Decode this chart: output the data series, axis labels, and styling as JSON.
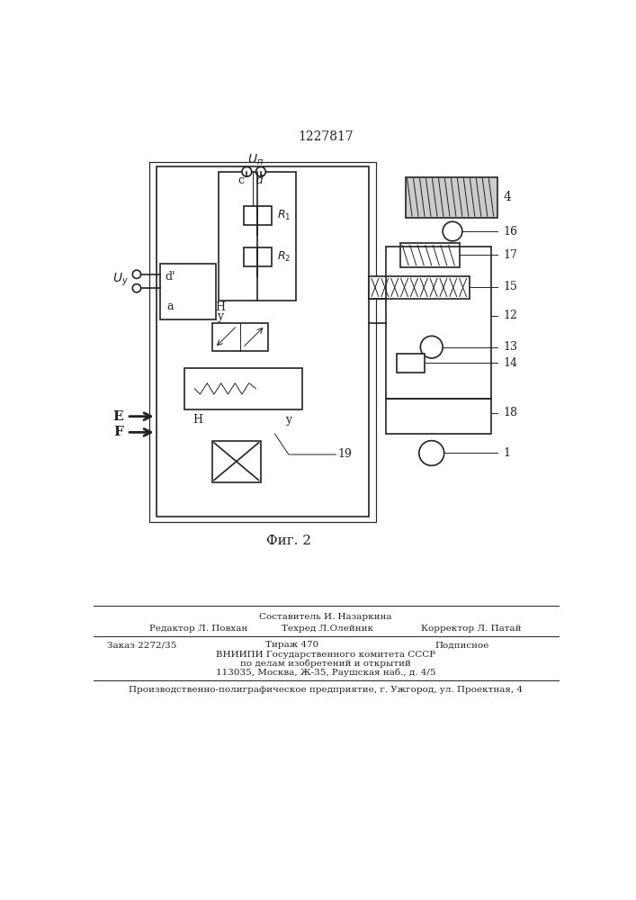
{
  "patent_number": "1227817",
  "fig_label": "Фиг. 2",
  "bg_color": "#ffffff",
  "footer": {
    "line1_left": "Редактор Л. Повхан",
    "line1_center": "Составитель И. Назаркина",
    "line1_center2": "Техред Л.Олейник",
    "line1_right": "Корректор Л. Патай",
    "line2_left": "Заказ 2272/35",
    "line2_center": "Тираж 470",
    "line2_right": "Подписное",
    "line3": "ВНИИПИ Государственного комитета СССР",
    "line4": "по делам изобретений и открытий",
    "line5": "113035, Москва, Ж-35, Раушская наб., д. 4/5",
    "line6": "Производственно-полиграфическое предприятие, г. Ужгород, ул. Проектная, 4"
  }
}
